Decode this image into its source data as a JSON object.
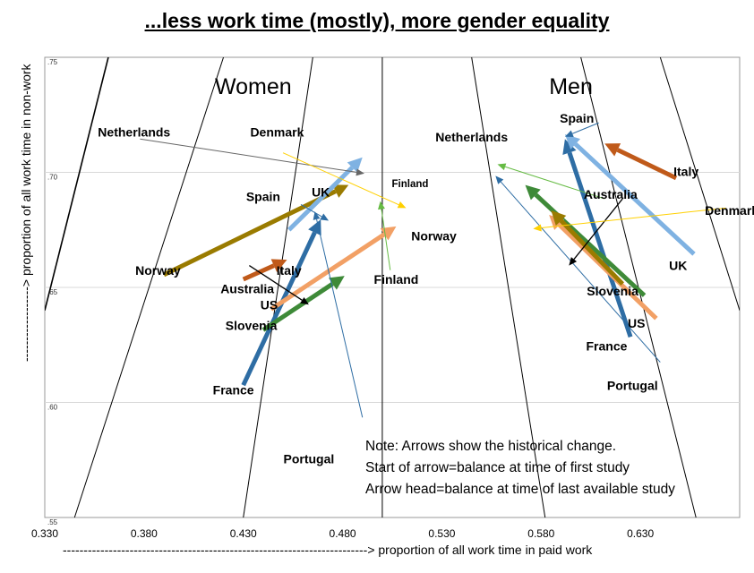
{
  "chart_data": {
    "type": "scatter",
    "title": "...less work time (mostly), more gender equality",
    "xlabel": "-------------------------------------------------------------------------> proportion of all work time in paid work",
    "ylabel": "------------------> proportion of all work time in non-work",
    "xlim": [
      0.33,
      0.68
    ],
    "ylim": [
      0.55,
      0.75
    ],
    "x_ticks": [
      "0.330",
      "0.380",
      "0.430",
      "0.480",
      "0.530",
      "0.580",
      "0.630"
    ],
    "y_ticks": [
      {
        "value": 0.75,
        "label": ".75"
      },
      {
        "value": 0.7,
        "label": ".70"
      },
      {
        "value": 0.65,
        "label": ".65"
      },
      {
        "value": 0.6,
        "label": ".60"
      },
      {
        "value": 0.55,
        "label": ".55"
      }
    ],
    "grid": "horizontal",
    "panels": [
      "Women",
      "Men"
    ],
    "note_lines": [
      "Note: Arrows show the historical change.",
      "Start of arrow=balance at time of first study",
      "Arrow head=balance at time of last available study"
    ],
    "background_lines": [
      {
        "x": [
          0.33,
          0.362
        ],
        "y": [
          0.64,
          0.75
        ]
      },
      {
        "x": [
          0.345,
          0.42
        ],
        "y": [
          0.55,
          0.75
        ]
      },
      {
        "x": [
          0.43,
          0.465
        ],
        "y": [
          0.55,
          0.75
        ]
      },
      {
        "x": [
          0.5,
          0.5
        ],
        "y": [
          0.55,
          0.75
        ]
      },
      {
        "x": [
          0.582,
          0.545
        ],
        "y": [
          0.55,
          0.75
        ]
      },
      {
        "x": [
          0.658,
          0.6
        ],
        "y": [
          0.55,
          0.75
        ]
      },
      {
        "x": [
          0.68,
          0.64
        ],
        "y": [
          0.64,
          0.75
        ]
      }
    ],
    "series": [
      {
        "name": "France",
        "panel": "women",
        "x": [
          0.43,
          0.469
        ],
        "y": [
          0.6075,
          0.6795
        ],
        "color": "#2e6da4",
        "width": 5
      },
      {
        "name": "Norway",
        "panel": "women",
        "x": [
          0.39,
          0.483
        ],
        "y": [
          0.6555,
          0.6945
        ],
        "color": "#9a7b00",
        "width": 5
      },
      {
        "name": "UK",
        "panel": "women",
        "x": [
          0.453,
          0.49
        ],
        "y": [
          0.675,
          0.7065
        ],
        "color": "#7fb2e2",
        "width": 5
      },
      {
        "name": "US",
        "panel": "women",
        "x": [
          0.444,
          0.507
        ],
        "y": [
          0.6405,
          0.6765
        ],
        "color": "#f2a065",
        "width": 5
      },
      {
        "name": "Slovenia",
        "panel": "women",
        "x": [
          0.44,
          0.481
        ],
        "y": [
          0.6315,
          0.655
        ],
        "color": "#3e8a38",
        "width": 5
      },
      {
        "name": "Italy",
        "panel": "women",
        "x": [
          0.43,
          0.452
        ],
        "y": [
          0.6535,
          0.662
        ],
        "color": "#c05a1a",
        "width": 5
      },
      {
        "name": "Portugal",
        "panel": "women",
        "x": [
          0.49,
          0.466
        ],
        "y": [
          0.5935,
          0.683
        ],
        "color": "#2e6da4",
        "width": 1
      },
      {
        "name": "Spain",
        "panel": "women",
        "x": [
          0.459,
          0.473
        ],
        "y": [
          0.686,
          0.679
        ],
        "color": "#2e6da4",
        "width": 1
      },
      {
        "name": "Australia",
        "panel": "women",
        "x": [
          0.433,
          0.463
        ],
        "y": [
          0.6595,
          0.6425
        ],
        "color": "#000000",
        "width": 1.3
      },
      {
        "name": "Netherlands",
        "panel": "women",
        "x": [
          0.378,
          0.491
        ],
        "y": [
          0.7145,
          0.6995
        ],
        "color": "#666666",
        "width": 1
      },
      {
        "name": "Denmark",
        "panel": "women",
        "x": [
          0.45,
          0.512
        ],
        "y": [
          0.7085,
          0.6845
        ],
        "color": "#ffd000",
        "width": 1
      },
      {
        "name": "Finland",
        "panel": "women",
        "x": [
          0.504,
          0.499
        ],
        "y": [
          0.6575,
          0.6875
        ],
        "color": "#66bb44",
        "width": 1
      },
      {
        "name": "France",
        "panel": "men",
        "x": [
          0.625,
          0.592
        ],
        "y": [
          0.6285,
          0.7145
        ],
        "color": "#2e6da4",
        "width": 5
      },
      {
        "name": "UK",
        "panel": "men",
        "x": [
          0.657,
          0.592
        ],
        "y": [
          0.6645,
          0.7165
        ],
        "color": "#7fb2e2",
        "width": 5
      },
      {
        "name": "Slovenia",
        "panel": "men",
        "x": [
          0.632,
          0.572
        ],
        "y": [
          0.6465,
          0.6945
        ],
        "color": "#3e8a38",
        "width": 5
      },
      {
        "name": "US",
        "panel": "men",
        "x": [
          0.638,
          0.584
        ],
        "y": [
          0.6365,
          0.6815
        ],
        "color": "#f2a065",
        "width": 5
      },
      {
        "name": "Norway",
        "panel": "men",
        "x": [
          0.621,
          0.585
        ],
        "y": [
          0.6515,
          0.6835
        ],
        "color": "#9a7b00",
        "width": 5
      },
      {
        "name": "Italy",
        "panel": "men",
        "x": [
          0.648,
          0.612
        ],
        "y": [
          0.6975,
          0.7125
        ],
        "color": "#c05a1a",
        "width": 5
      },
      {
        "name": "Portugal",
        "panel": "men",
        "x": [
          0.64,
          0.557
        ],
        "y": [
          0.6175,
          0.6985
        ],
        "color": "#2e6da4",
        "width": 1
      },
      {
        "name": "Spain",
        "panel": "men",
        "x": [
          0.609,
          0.592
        ],
        "y": [
          0.7215,
          0.7155
        ],
        "color": "#2e6da4",
        "width": 1
      },
      {
        "name": "Australia",
        "panel": "men",
        "x": [
          0.621,
          0.594
        ],
        "y": [
          0.6885,
          0.6595
        ],
        "color": "#000000",
        "width": 1.3
      },
      {
        "name": "Netherlands",
        "panel": "men",
        "x": [
          0.612,
          0.558
        ],
        "y": [
          0.6885,
          0.7035
        ],
        "color": "#66bb44",
        "width": 1
      },
      {
        "name": "Denmark",
        "panel": "men",
        "x": [
          0.673,
          0.576
        ],
        "y": [
          0.6845,
          0.6755
        ],
        "color": "#ffd000",
        "width": 1
      }
    ],
    "labels": [
      {
        "text": "Women",
        "x": 0.435,
        "y": 0.734,
        "kind": "panel"
      },
      {
        "text": "Men",
        "x": 0.595,
        "y": 0.734,
        "kind": "panel"
      },
      {
        "text": "Netherlands",
        "x": 0.375,
        "y": 0.7155,
        "kind": "country"
      },
      {
        "text": "Denmark",
        "x": 0.447,
        "y": 0.7155,
        "kind": "country"
      },
      {
        "text": "Spain",
        "x": 0.44,
        "y": 0.6875,
        "kind": "country"
      },
      {
        "text": "UK",
        "x": 0.469,
        "y": 0.6895,
        "kind": "country"
      },
      {
        "text": "Norway",
        "x": 0.387,
        "y": 0.6555,
        "kind": "country"
      },
      {
        "text": "Italy",
        "x": 0.453,
        "y": 0.6555,
        "kind": "country"
      },
      {
        "text": "Australia",
        "x": 0.432,
        "y": 0.6475,
        "kind": "country"
      },
      {
        "text": "US",
        "x": 0.443,
        "y": 0.6405,
        "kind": "country"
      },
      {
        "text": "Slovenia",
        "x": 0.434,
        "y": 0.6315,
        "kind": "country"
      },
      {
        "text": "Finland",
        "x": 0.507,
        "y": 0.6515,
        "kind": "country"
      },
      {
        "text": "France",
        "x": 0.425,
        "y": 0.6035,
        "kind": "country"
      },
      {
        "text": "Portugal",
        "x": 0.463,
        "y": 0.5735,
        "kind": "country"
      },
      {
        "text": "Spain",
        "x": 0.598,
        "y": 0.7215,
        "kind": "country"
      },
      {
        "text": "Netherlands",
        "x": 0.545,
        "y": 0.7135,
        "kind": "country"
      },
      {
        "text": "Italy",
        "x": 0.653,
        "y": 0.6985,
        "kind": "country"
      },
      {
        "text": "Finland",
        "x": 0.514,
        "y": 0.6935,
        "kind": "country-small"
      },
      {
        "text": "Australia",
        "x": 0.615,
        "y": 0.6885,
        "kind": "country"
      },
      {
        "text": "Denmark",
        "x": 0.676,
        "y": 0.6815,
        "kind": "country"
      },
      {
        "text": "Norway",
        "x": 0.526,
        "y": 0.6705,
        "kind": "country"
      },
      {
        "text": "UK",
        "x": 0.649,
        "y": 0.6575,
        "kind": "country"
      },
      {
        "text": "Slovenia",
        "x": 0.616,
        "y": 0.6465,
        "kind": "country"
      },
      {
        "text": "US",
        "x": 0.628,
        "y": 0.6325,
        "kind": "country"
      },
      {
        "text": "France",
        "x": 0.613,
        "y": 0.6225,
        "kind": "country"
      },
      {
        "text": "Portugal",
        "x": 0.626,
        "y": 0.6055,
        "kind": "country"
      }
    ]
  }
}
